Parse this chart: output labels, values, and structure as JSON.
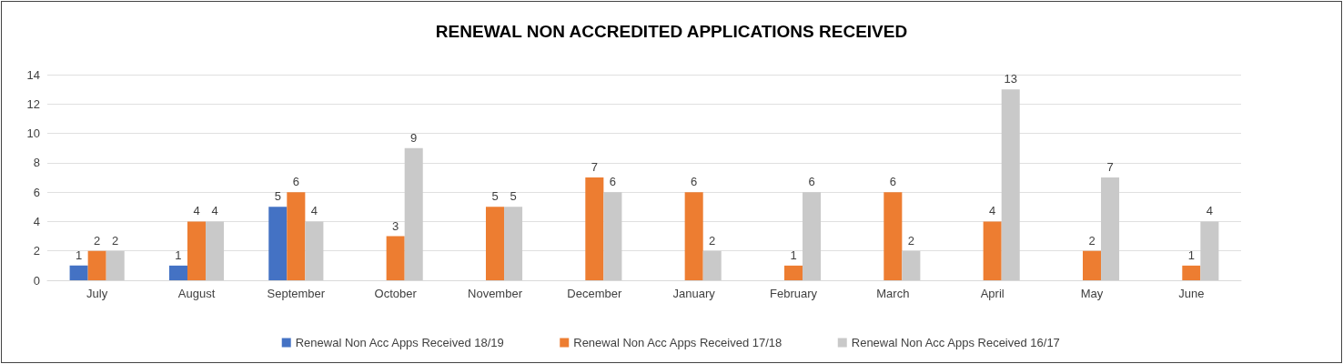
{
  "chart_data": {
    "type": "bar",
    "title": "RENEWAL NON ACCREDITED APPLICATIONS RECEIVED",
    "categories": [
      "July",
      "August",
      "September",
      "October",
      "November",
      "December",
      "January",
      "February",
      "March",
      "April",
      "May",
      "June"
    ],
    "series": [
      {
        "name": "Renewal Non Acc Apps Received 18/19",
        "color": "#4472c4",
        "values": [
          1,
          1,
          5,
          null,
          null,
          null,
          null,
          null,
          null,
          null,
          null,
          null
        ]
      },
      {
        "name": "Renewal Non Acc Apps Received 17/18",
        "color": "#ed7d31",
        "values": [
          2,
          4,
          6,
          3,
          5,
          7,
          6,
          1,
          6,
          4,
          2,
          1
        ]
      },
      {
        "name": "Renewal Non Acc Apps Received 16/17",
        "color": "#c9c9c9",
        "values": [
          2,
          4,
          4,
          9,
          5,
          6,
          2,
          6,
          2,
          13,
          7,
          4
        ]
      }
    ],
    "ylim": [
      0,
      14
    ],
    "yticks": [
      0,
      2,
      4,
      6,
      8,
      10,
      12,
      14
    ],
    "grid": "y",
    "legend": "bottom",
    "data_labels": true
  }
}
